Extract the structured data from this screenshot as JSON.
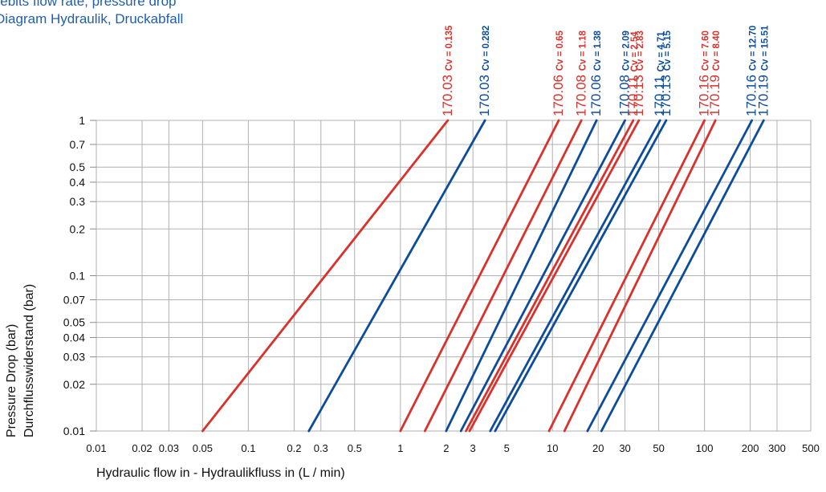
{
  "title_line1": "Débits flow rate, pressure drop",
  "title_line2": "Diagram Hydraulik, Druckabfall",
  "chart_data": {
    "type": "line",
    "x_scale": "log",
    "y_scale": "log",
    "xlim": [
      0.01,
      500
    ],
    "ylim": [
      0.01,
      1
    ],
    "x_ticks": [
      0.01,
      0.02,
      0.03,
      0.05,
      0.1,
      0.2,
      0.3,
      0.5,
      1,
      2,
      3,
      5,
      10,
      20,
      30,
      50,
      100,
      200,
      300,
      500
    ],
    "x_tick_labels": [
      "0.01",
      "0.02",
      "0.03",
      "0.05",
      "0.1",
      "0.2",
      "0.3",
      "0.5",
      "1",
      "2",
      "3",
      "5",
      "10",
      "20",
      "30",
      "50",
      "100",
      "200",
      "300",
      "500"
    ],
    "y_ticks": [
      0.01,
      0.02,
      0.03,
      0.04,
      0.05,
      0.07,
      0.1,
      0.2,
      0.3,
      0.4,
      0.5,
      0.7,
      1
    ],
    "y_tick_labels": [
      "0.01",
      "0.02",
      "0.03",
      "0.04",
      "0.05",
      "0.07",
      "0.1",
      "0.2",
      "0.3",
      "0.4",
      "0.5",
      "0.7",
      "1"
    ],
    "xlabel": "Hydraulic flow in  - Hydraulikfluss in (L / min)",
    "ylabel_line1": "Pressure Drop (bar)",
    "ylabel_line2": "Durchflusswiderstand (bar)",
    "grid": true,
    "colors": {
      "red": "#d9312b",
      "blue": "#0d4c9b"
    },
    "series": [
      {
        "name": "170.03",
        "cv": "Cv = 0.135",
        "color": "red",
        "x": [
          0.05,
          2.05
        ]
      },
      {
        "name": "170.03",
        "cv": "Cv = 0.282",
        "color": "blue",
        "x": [
          0.25,
          3.6
        ]
      },
      {
        "name": "170.06",
        "cv": "Cv = 0.65",
        "color": "red",
        "x": [
          1.0,
          11.0
        ]
      },
      {
        "name": "170.08",
        "cv": "Cv = 1.18",
        "color": "red",
        "x": [
          1.45,
          15.5
        ]
      },
      {
        "name": "170.06",
        "cv": "Cv = 1.38",
        "color": "blue",
        "x": [
          2.0,
          19.5
        ]
      },
      {
        "name": "170.08",
        "cv": "Cv = 2.09",
        "color": "blue",
        "x": [
          2.5,
          30.0
        ]
      },
      {
        "name": "170.11",
        "cv": "Cv = 2.54",
        "color": "red",
        "x": [
          2.7,
          34.0
        ]
      },
      {
        "name": "170.13",
        "cv": "Cv = 2.83",
        "color": "red",
        "x": [
          2.85,
          37.0
        ]
      },
      {
        "name": "170.11",
        "cv": "Cv = 4.71",
        "color": "blue",
        "x": [
          3.9,
          51.0
        ]
      },
      {
        "name": "170.13",
        "cv": "Cv = 5.15",
        "color": "blue",
        "x": [
          4.2,
          56.0
        ]
      },
      {
        "name": "170.16",
        "cv": "Cv = 7.60",
        "color": "red",
        "x": [
          9.5,
          100.0
        ]
      },
      {
        "name": "170.19",
        "cv": "Cv = 8.40",
        "color": "red",
        "x": [
          12.0,
          118.0
        ]
      },
      {
        "name": "170.16",
        "cv": "Cv = 12.70",
        "color": "blue",
        "x": [
          17.0,
          205.0
        ]
      },
      {
        "name": "170.19",
        "cv": "Cv = 15.51",
        "color": "blue",
        "x": [
          21.0,
          245.0
        ]
      }
    ]
  }
}
